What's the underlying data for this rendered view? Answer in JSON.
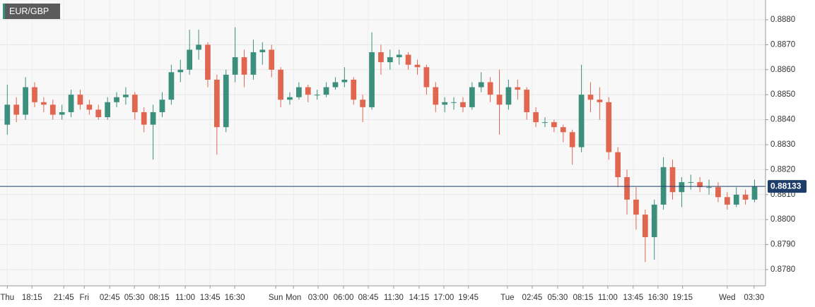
{
  "chart_data": {
    "type": "candlestick",
    "title": "EUR/GBP",
    "x": [
      0,
      1,
      2,
      3,
      4,
      5,
      6,
      7,
      8,
      9,
      10,
      11,
      12,
      13,
      14,
      15,
      16,
      17,
      18,
      19,
      20,
      21,
      22,
      23,
      24,
      25,
      26,
      27,
      28,
      29,
      30,
      31,
      32,
      33,
      34,
      35,
      36,
      37,
      38,
      39,
      40,
      41,
      42,
      43,
      44,
      45,
      46,
      47,
      48,
      49,
      50,
      51,
      52,
      53,
      54,
      55,
      56,
      57,
      58,
      59,
      60,
      61,
      62,
      63,
      64,
      65,
      66,
      67,
      68,
      69,
      70,
      71,
      72,
      73,
      74,
      75,
      76,
      77,
      78,
      79,
      80,
      81,
      82
    ],
    "open": [
      0.8838,
      0.8846,
      0.8842,
      0.8853,
      0.8847,
      0.8846,
      0.8842,
      0.8843,
      0.885,
      0.8846,
      0.8844,
      0.8841,
      0.8847,
      0.8849,
      0.885,
      0.8843,
      0.8838,
      0.8843,
      0.8848,
      0.8859,
      0.886,
      0.8868,
      0.887,
      0.8856,
      0.8837,
      0.8858,
      0.8865,
      0.8858,
      0.8867,
      0.8868,
      0.886,
      0.8848,
      0.8849,
      0.8853,
      0.885,
      0.885,
      0.8853,
      0.8855,
      0.8856,
      0.8848,
      0.8845,
      0.8867,
      0.8863,
      0.8865,
      0.8866,
      0.8862,
      0.8861,
      0.8853,
      0.8846,
      0.8847,
      0.8847,
      0.8845,
      0.8853,
      0.8855,
      0.885,
      0.8846,
      0.8853,
      0.8852,
      0.8843,
      0.8839,
      0.8839,
      0.8837,
      0.8835,
      0.8829,
      0.885,
      0.8848,
      0.8847,
      0.8827,
      0.8817,
      0.8808,
      0.8802,
      0.8793,
      0.8806,
      0.8821,
      0.8811,
      0.8815,
      0.8815,
      0.8813,
      0.8813,
      0.8809,
      0.8806,
      0.881,
      0.8808
    ],
    "high": [
      0.8854,
      0.8849,
      0.8857,
      0.8855,
      0.8849,
      0.8848,
      0.8846,
      0.8852,
      0.8852,
      0.8848,
      0.8846,
      0.8849,
      0.8851,
      0.8853,
      0.8851,
      0.8845,
      0.8846,
      0.8851,
      0.8862,
      0.8864,
      0.8876,
      0.8876,
      0.8871,
      0.8858,
      0.886,
      0.8877,
      0.8868,
      0.8872,
      0.8871,
      0.887,
      0.8861,
      0.8851,
      0.8855,
      0.8854,
      0.8852,
      0.8855,
      0.8857,
      0.8861,
      0.8857,
      0.885,
      0.8875,
      0.887,
      0.8868,
      0.8868,
      0.8867,
      0.8864,
      0.8862,
      0.8855,
      0.8849,
      0.8849,
      0.8849,
      0.8855,
      0.8859,
      0.8857,
      0.886,
      0.8856,
      0.8856,
      0.8853,
      0.8845,
      0.8841,
      0.884,
      0.8838,
      0.8836,
      0.8862,
      0.8855,
      0.8853,
      0.8849,
      0.8829,
      0.882,
      0.8813,
      0.8804,
      0.8808,
      0.8825,
      0.8824,
      0.8817,
      0.8818,
      0.8817,
      0.8816,
      0.8815,
      0.8811,
      0.8813,
      0.8812,
      0.8816
    ],
    "low": [
      0.8834,
      0.8839,
      0.884,
      0.8845,
      0.8843,
      0.884,
      0.884,
      0.8841,
      0.8844,
      0.8842,
      0.884,
      0.884,
      0.8845,
      0.8846,
      0.884,
      0.8835,
      0.8824,
      0.8841,
      0.8846,
      0.8855,
      0.8858,
      0.8864,
      0.8853,
      0.8826,
      0.8835,
      0.8855,
      0.8853,
      0.8856,
      0.8862,
      0.8857,
      0.8845,
      0.8846,
      0.8848,
      0.8847,
      0.8848,
      0.8849,
      0.8852,
      0.8853,
      0.8846,
      0.8839,
      0.8844,
      0.8858,
      0.886,
      0.8862,
      0.886,
      0.8858,
      0.885,
      0.8843,
      0.8843,
      0.8844,
      0.8843,
      0.8844,
      0.8851,
      0.8847,
      0.8834,
      0.8844,
      0.8848,
      0.884,
      0.8837,
      0.8837,
      0.8835,
      0.8831,
      0.8822,
      0.8827,
      0.8843,
      0.884,
      0.8824,
      0.8813,
      0.8802,
      0.8796,
      0.8783,
      0.8784,
      0.8804,
      0.8808,
      0.8805,
      0.8812,
      0.8811,
      0.881,
      0.8807,
      0.8804,
      0.8805,
      0.8806,
      0.8807
    ],
    "close": [
      0.8846,
      0.8842,
      0.8853,
      0.8847,
      0.8846,
      0.8842,
      0.8843,
      0.885,
      0.8846,
      0.8844,
      0.8841,
      0.8847,
      0.8849,
      0.885,
      0.8843,
      0.8838,
      0.8843,
      0.8848,
      0.8859,
      0.886,
      0.8868,
      0.887,
      0.8856,
      0.8837,
      0.8858,
      0.8865,
      0.8858,
      0.8867,
      0.8868,
      0.886,
      0.8848,
      0.8849,
      0.8853,
      0.885,
      0.885,
      0.8853,
      0.8855,
      0.8856,
      0.8848,
      0.8845,
      0.8867,
      0.8863,
      0.8865,
      0.8866,
      0.8862,
      0.8861,
      0.8853,
      0.8846,
      0.8847,
      0.8847,
      0.8845,
      0.8853,
      0.8855,
      0.885,
      0.8846,
      0.8853,
      0.8852,
      0.8843,
      0.8839,
      0.8839,
      0.8837,
      0.8835,
      0.8829,
      0.885,
      0.8848,
      0.8847,
      0.8827,
      0.8817,
      0.8808,
      0.8802,
      0.8793,
      0.8806,
      0.8821,
      0.8811,
      0.8815,
      0.8815,
      0.8813,
      0.8813,
      0.8809,
      0.8806,
      0.881,
      0.8808,
      0.88133
    ],
    "up_color": "#3b8f7c",
    "down_color": "#e0664f",
    "last_price": 0.88133,
    "last_price_color": "#1f3d6b",
    "xlim": [
      -0.8,
      83.2
    ],
    "xticks": [
      {
        "value": 0,
        "label": "Thu"
      },
      {
        "value": 2.71,
        "label": "18:15"
      },
      {
        "value": 6.2,
        "label": "21:45"
      },
      {
        "value": 8.45,
        "label": "Fri"
      },
      {
        "value": 11.24,
        "label": "02:45"
      },
      {
        "value": 13.95,
        "label": "05:30"
      },
      {
        "value": 16.67,
        "label": "08:15"
      },
      {
        "value": 19.53,
        "label": "11:00"
      },
      {
        "value": 22.25,
        "label": "13:45"
      },
      {
        "value": 24.96,
        "label": "16:30"
      },
      {
        "value": 29.46,
        "label": "Sun"
      },
      {
        "value": 31.4,
        "label": "Mon"
      },
      {
        "value": 34.11,
        "label": "03:00"
      },
      {
        "value": 36.9,
        "label": "06:00"
      },
      {
        "value": 39.61,
        "label": "08:45"
      },
      {
        "value": 42.4,
        "label": "11:30"
      },
      {
        "value": 45.19,
        "label": "14:15"
      },
      {
        "value": 47.9,
        "label": "17:00"
      },
      {
        "value": 50.6,
        "label": "19:45"
      },
      {
        "value": 54.88,
        "label": "Tue"
      },
      {
        "value": 57.6,
        "label": "02:45"
      },
      {
        "value": 60.39,
        "label": "05:30"
      },
      {
        "value": 63.18,
        "label": "08:15"
      },
      {
        "value": 65.89,
        "label": "11:00"
      },
      {
        "value": 68.68,
        "label": "13:45"
      },
      {
        "value": 71.4,
        "label": "16:30"
      },
      {
        "value": 74.1,
        "label": "19:15"
      },
      {
        "value": 79,
        "label": "Wed"
      },
      {
        "value": 81.94,
        "label": "03:30"
      }
    ],
    "ylim": [
      0.87735,
      0.88879
    ],
    "yticks": [
      {
        "value": 0.878,
        "label": "0.8780"
      },
      {
        "value": 0.879,
        "label": "0.8790"
      },
      {
        "value": 0.88,
        "label": "0.8800"
      },
      {
        "value": 0.881,
        "label": "0.8810"
      },
      {
        "value": 0.882,
        "label": "0.8820"
      },
      {
        "value": 0.883,
        "label": "0.8830"
      },
      {
        "value": 0.884,
        "label": "0.8840"
      },
      {
        "value": 0.885,
        "label": "0.8850"
      },
      {
        "value": 0.886,
        "label": "0.8860"
      },
      {
        "value": 0.887,
        "label": "0.8870"
      },
      {
        "value": 0.888,
        "label": "0.8880"
      }
    ],
    "grid": true
  }
}
